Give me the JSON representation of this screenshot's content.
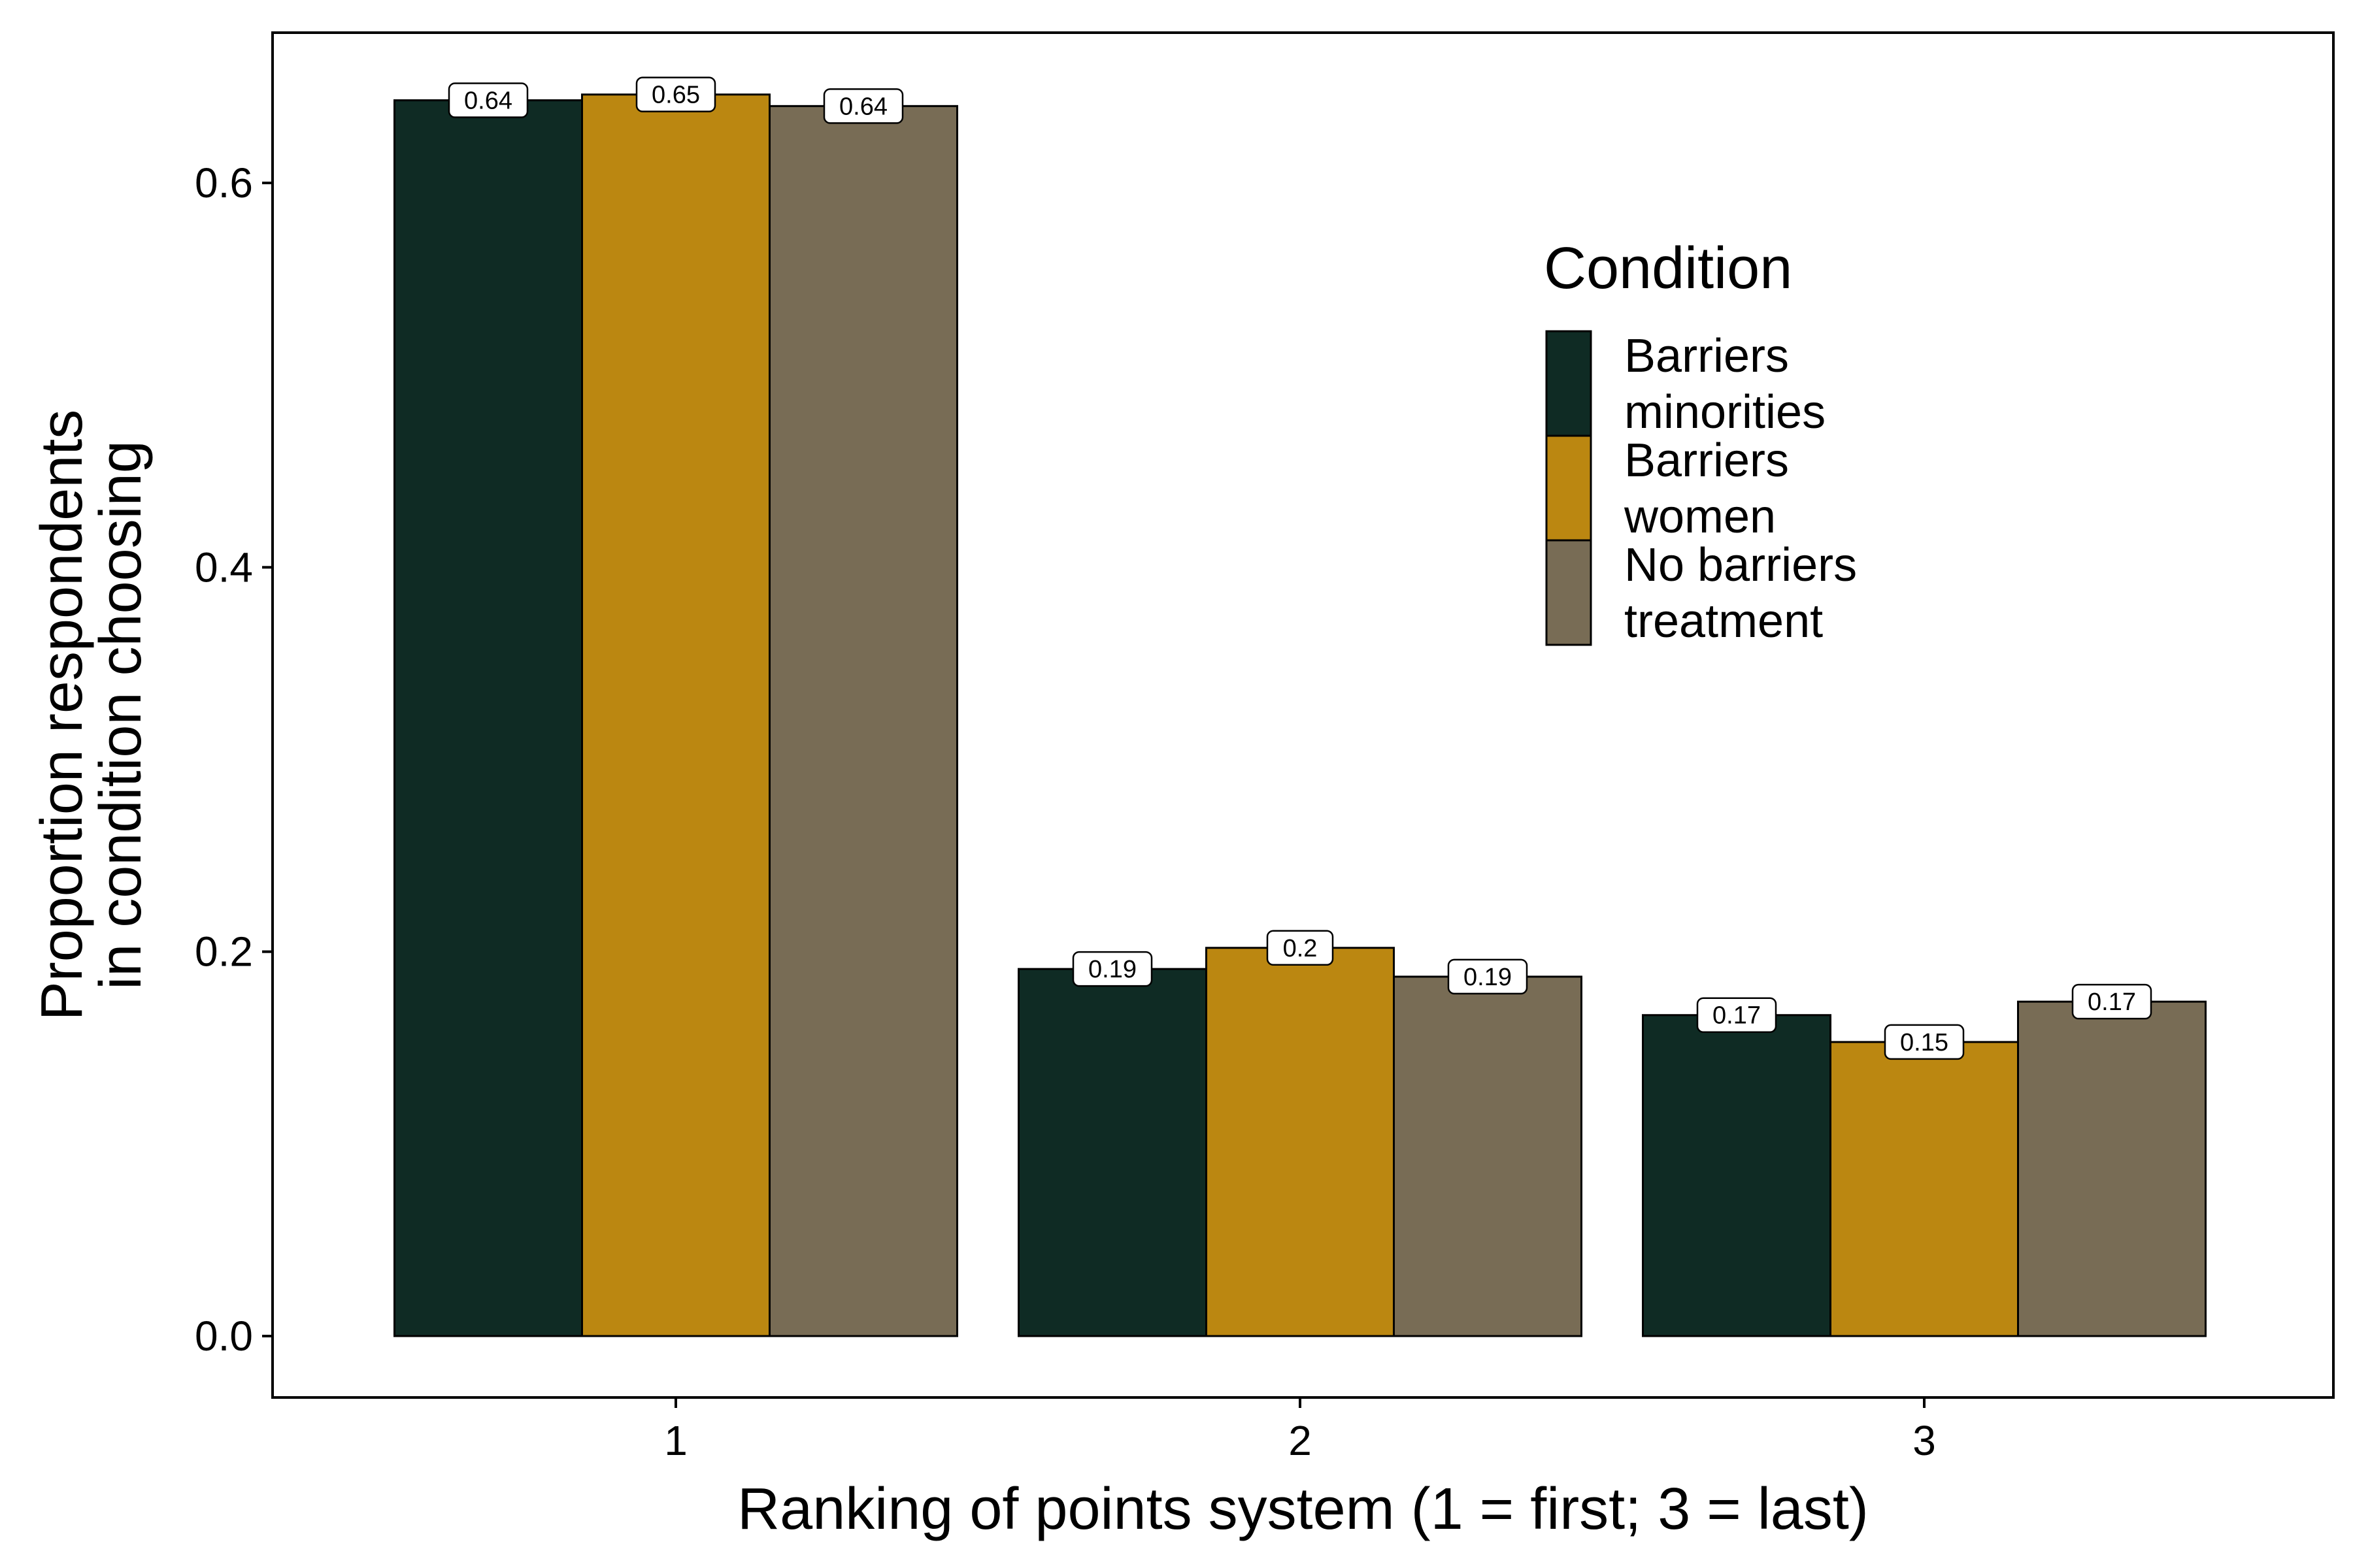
{
  "chart_data": {
    "type": "bar",
    "categories": [
      "1",
      "2",
      "3"
    ],
    "series": [
      {
        "name": "Barriers\nminorities",
        "values": [
          0.643,
          0.191,
          0.167
        ],
        "labels": [
          "0.64",
          "0.19",
          "0.17"
        ],
        "color": "#0f2b24"
      },
      {
        "name": "Barriers\nwomen",
        "values": [
          0.646,
          0.202,
          0.153
        ],
        "labels": [
          "0.65",
          "0.2",
          "0.15"
        ],
        "color": "#bb8711"
      },
      {
        "name": "No barriers\ntreatment",
        "values": [
          0.64,
          0.187,
          0.174
        ],
        "labels": [
          "0.64",
          "0.19",
          "0.17"
        ],
        "color": "#786c55"
      }
    ],
    "xlabel": "Ranking of points system (1 = first; 3 = last)",
    "ylabel": "Proportion respondents\nin condition choosing",
    "ylim": [
      -0.032,
      0.679
    ],
    "yticks": [
      0.0,
      0.2,
      0.4,
      0.6
    ],
    "ytick_labels": [
      "0.0",
      "0.2",
      "0.4",
      "0.6"
    ],
    "legend_title": "Condition",
    "legend_position": "top-right inside",
    "grid": false
  }
}
